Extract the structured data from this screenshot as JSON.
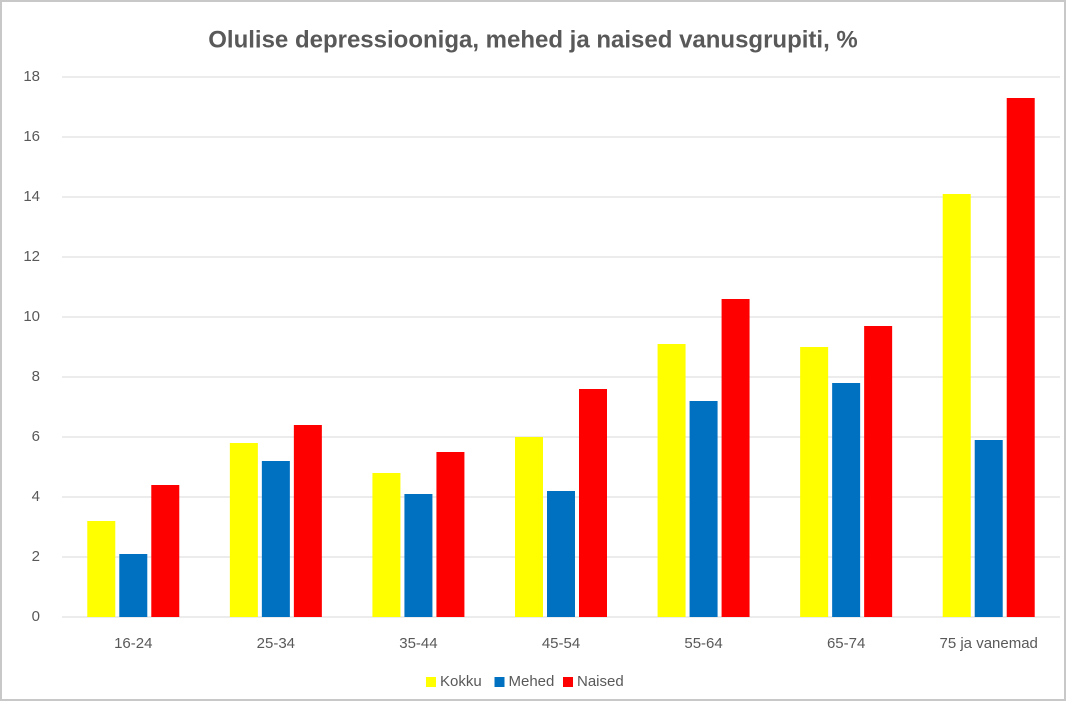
{
  "chart_data": {
    "type": "bar",
    "title": "Olulise depressiooniga, mehed ja naised vanusgrupiti, %",
    "categories": [
      "16-24",
      "25-34",
      "35-44",
      "45-54",
      "55-64",
      "65-74",
      "75 ja vanemad"
    ],
    "series": [
      {
        "name": "Kokku",
        "color": "#ffff00",
        "values": [
          3.2,
          5.8,
          4.8,
          6.0,
          9.1,
          9.0,
          14.1
        ]
      },
      {
        "name": "Mehed",
        "color": "#0070c0",
        "values": [
          2.1,
          5.2,
          4.1,
          4.2,
          7.2,
          7.8,
          5.9
        ]
      },
      {
        "name": "Naised",
        "color": "#ff0000",
        "values": [
          4.4,
          6.4,
          5.5,
          7.6,
          10.6,
          9.7,
          17.3
        ]
      }
    ],
    "ylim": [
      0,
      18
    ],
    "yticks": [
      0,
      2,
      4,
      6,
      8,
      10,
      12,
      14,
      16,
      18
    ],
    "grid": true,
    "legend": "bottom"
  }
}
